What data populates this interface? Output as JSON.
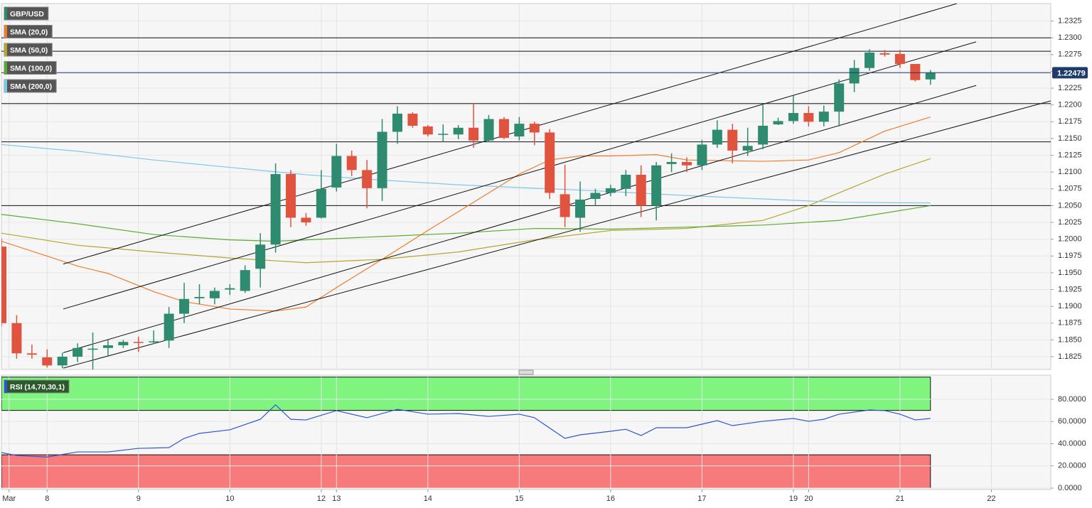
{
  "chart_data": [
    {
      "type": "candlestick",
      "series": [
        {
          "name": "GBP/USD",
          "up_color": "#2e8b6f",
          "down_color": "#e0533f",
          "open": [
            1.1989,
            1.1875,
            1.183,
            1.1824,
            1.1812,
            1.1825,
            1.1836,
            1.1838,
            1.1842,
            1.1847,
            1.1847,
            1.1849,
            1.1889,
            1.1912,
            1.1912,
            1.1925,
            1.1923,
            1.1956,
            1.1992,
            1.2097,
            1.2032,
            1.2032,
            1.2077,
            1.2124,
            1.2103,
            1.2076,
            1.216,
            1.2187,
            1.2168,
            1.2156,
            1.2156,
            1.2166,
            1.2147,
            1.2179,
            1.2153,
            1.2172,
            1.2159,
            1.2067,
            1.2032,
            1.206,
            1.2069,
            1.2075,
            1.2096,
            1.205,
            1.2112,
            1.2115,
            1.211,
            1.2141,
            1.2163,
            1.2132,
            1.2141,
            1.2171,
            1.2176,
            1.2188,
            1.2175,
            1.219,
            1.2232,
            1.2255,
            1.2277,
            1.2276,
            1.2261,
            1.2238
          ],
          "high": [
            1.2001,
            1.1887,
            1.1843,
            1.1836,
            1.1831,
            1.1845,
            1.1861,
            1.185,
            1.185,
            1.1855,
            1.1864,
            1.1899,
            1.1935,
            1.1933,
            1.1928,
            1.1933,
            1.1961,
            1.2009,
            1.2113,
            1.2103,
            1.2039,
            1.2103,
            1.2142,
            1.2132,
            1.2118,
            1.2179,
            1.2198,
            1.2189,
            1.217,
            1.2171,
            1.217,
            1.2203,
            1.2185,
            1.2182,
            1.2182,
            1.2175,
            1.2164,
            1.2111,
            1.2086,
            1.2075,
            1.2081,
            1.2103,
            1.211,
            1.2115,
            1.2128,
            1.2122,
            1.2148,
            1.2177,
            1.2172,
            1.2166,
            1.22,
            1.2181,
            1.2214,
            1.2198,
            1.2199,
            1.2238,
            1.2267,
            1.2283,
            1.2282,
            1.2282,
            1.2261,
            1.2252
          ],
          "low": [
            1.187,
            1.1822,
            1.1822,
            1.1809,
            1.1808,
            1.1817,
            1.1806,
            1.1827,
            1.1838,
            1.1832,
            1.1844,
            1.1838,
            1.1875,
            1.1903,
            1.1903,
            1.1917,
            1.192,
            1.1928,
            1.198,
            1.2018,
            1.202,
            1.2031,
            1.2071,
            1.2094,
            1.2046,
            1.2057,
            1.2142,
            1.2166,
            1.2153,
            1.2145,
            1.2149,
            1.2136,
            1.2145,
            1.2149,
            1.2147,
            1.214,
            1.206,
            1.2018,
            1.2011,
            1.205,
            1.2064,
            1.2064,
            1.2033,
            1.2028,
            1.21,
            1.21,
            1.2103,
            1.2136,
            1.2113,
            1.2124,
            1.2134,
            1.217,
            1.2172,
            1.2168,
            1.2168,
            1.2168,
            1.2219,
            1.2251,
            1.2272,
            1.2255,
            1.2235,
            1.223
          ],
          "close": [
            1.1875,
            1.183,
            1.1828,
            1.1812,
            1.1825,
            1.1838,
            1.1837,
            1.1842,
            1.1847,
            1.1846,
            1.1848,
            1.1889,
            1.1911,
            1.1914,
            1.1923,
            1.1927,
            1.1954,
            1.1992,
            1.2097,
            1.2032,
            1.2025,
            1.2075,
            1.2124,
            1.2103,
            1.2076,
            1.216,
            1.2187,
            1.2169,
            1.2156,
            1.2157,
            1.2166,
            1.2147,
            1.2179,
            1.2151,
            1.2172,
            1.2159,
            1.2069,
            1.2033,
            1.2059,
            1.2069,
            1.2076,
            1.2096,
            1.205,
            1.211,
            1.2115,
            1.211,
            1.2141,
            1.2163,
            1.2132,
            1.2139,
            1.2169,
            1.2176,
            1.2188,
            1.2175,
            1.219,
            1.2232,
            1.2255,
            1.2278,
            1.2275,
            1.2261,
            1.2237,
            1.2248
          ]
        }
      ],
      "overlays": [
        {
          "name": "SMA (20,0)",
          "color": "#f07c2a",
          "x": [
            0,
            5,
            7,
            10,
            12,
            15,
            18,
            20,
            22,
            25,
            28,
            31,
            34,
            36,
            38,
            40,
            43,
            45,
            50,
            53,
            55,
            58,
            61
          ],
          "values": [
            1.1997,
            1.196,
            1.1949,
            1.1922,
            1.1907,
            1.1896,
            1.1893,
            1.1899,
            1.1928,
            1.197,
            1.2013,
            1.2055,
            1.2097,
            1.2118,
            1.2124,
            1.2124,
            1.2126,
            1.2118,
            1.2116,
            1.2118,
            1.2129,
            1.2161,
            1.2182
          ]
        },
        {
          "name": "SMA (50,0)",
          "color": "#b5a531",
          "x": [
            0,
            5,
            10,
            15,
            20,
            25,
            30,
            35,
            40,
            45,
            50,
            53,
            55,
            58,
            61
          ],
          "values": [
            1.2009,
            1.1991,
            1.1981,
            1.1972,
            1.1965,
            1.197,
            1.1981,
            1.1999,
            1.2013,
            1.2016,
            1.2028,
            1.205,
            1.2069,
            1.2097,
            1.212
          ]
        },
        {
          "name": "SMA (100,0)",
          "color": "#5aab2f",
          "x": [
            0,
            5,
            10,
            15,
            18,
            20,
            25,
            30,
            35,
            40,
            45,
            50,
            55,
            61
          ],
          "values": [
            1.2037,
            1.2023,
            1.2007,
            1.1999,
            1.1997,
            1.1999,
            1.2004,
            1.2009,
            1.2016,
            1.2015,
            1.2018,
            1.2021,
            1.2028,
            1.205
          ]
        },
        {
          "name": "SMA (200,0)",
          "color": "#7ec8e8",
          "x": [
            0,
            5,
            10,
            15,
            20,
            25,
            30,
            35,
            40,
            45,
            50,
            55,
            61
          ],
          "values": [
            1.2141,
            1.2131,
            1.2118,
            1.2107,
            1.2096,
            1.2088,
            1.2081,
            1.2076,
            1.2071,
            1.2065,
            1.206,
            1.2055,
            1.2054
          ]
        }
      ],
      "trendlines": [
        {
          "x": [
            4.06,
            62.74
          ],
          "values": [
            1.1963,
            1.2351
          ]
        },
        {
          "x": [
            4.06,
            64.0
          ],
          "values": [
            1.1896,
            1.2294
          ]
        },
        {
          "x": [
            4.06,
            64.0
          ],
          "values": [
            1.1831,
            1.2229
          ]
        },
        {
          "x": [
            4.06,
            68.9
          ],
          "values": [
            1.1808,
            1.2206
          ]
        }
      ],
      "hlines": [
        1.23,
        1.228,
        1.2202,
        1.2145,
        1.205
      ],
      "last_price": 1.22479,
      "last_price_color": "#1f3b6b",
      "xlim": [
        0,
        68.9
      ],
      "ylim": [
        1.1806,
        1.2351
      ],
      "yticks": [
        1.2325,
        {
          "value": 1.23,
          "label": "1.2300"
        },
        1.2275,
        {
          "value": 1.225,
          "label": "1.2250"
        },
        1.2225,
        {
          "value": 1.22,
          "label": "1.2200"
        },
        1.2175,
        {
          "value": 1.215,
          "label": "1.2150"
        },
        1.2125,
        {
          "value": 1.21,
          "label": "1.2100"
        },
        1.2075,
        {
          "value": 1.205,
          "label": "1.2050"
        },
        1.2025,
        {
          "value": 1.2,
          "label": "1.2000"
        },
        1.1975,
        {
          "value": 1.195,
          "label": "1.1950"
        },
        1.1925,
        {
          "value": 1.19,
          "label": "1.1900"
        },
        1.1875,
        {
          "value": 1.185,
          "label": "1.1850"
        },
        1.1825
      ],
      "grid": true
    },
    {
      "type": "line",
      "series": [
        {
          "name": "RSI (14,70,30,1)",
          "color": "#2f55d4",
          "x": [
            0,
            1,
            3,
            5,
            7,
            9,
            11,
            12,
            13,
            15,
            17,
            18,
            19,
            20,
            22,
            24,
            26,
            28,
            30,
            32,
            34,
            35,
            37,
            38,
            40,
            41,
            42,
            43,
            45,
            46,
            47,
            48,
            50,
            52,
            53,
            54,
            55,
            57,
            58,
            59,
            60,
            61
          ],
          "values": [
            32,
            29.4,
            28,
            32.6,
            32.6,
            35.8,
            36.5,
            44.8,
            49.3,
            52.5,
            62,
            75,
            62,
            61.4,
            69.8,
            63.4,
            71,
            66.6,
            67.2,
            64.6,
            66.6,
            63.4,
            44.8,
            48,
            51.2,
            53,
            47.4,
            54.4,
            54.4,
            57.6,
            60.8,
            56.3,
            60.2,
            62.7,
            60.2,
            62,
            66.6,
            70.4,
            69.8,
            66.6,
            61.4,
            62.7
          ]
        }
      ],
      "bands": [
        {
          "from": 70,
          "to": 100,
          "color": "#7ff57f"
        },
        {
          "from": 0,
          "to": 30,
          "color": "#f77b7b"
        }
      ],
      "xlim": [
        0,
        68.9
      ],
      "xticks": [
        {
          "value": 0.5,
          "label": "Mar"
        },
        {
          "value": 3,
          "label": "8"
        },
        {
          "value": 9,
          "label": "9"
        },
        {
          "value": 15,
          "label": "10"
        },
        {
          "value": 21,
          "label": "12"
        },
        {
          "value": 22,
          "label": "13"
        },
        {
          "value": 28,
          "label": "14"
        },
        {
          "value": 34,
          "label": "15"
        },
        {
          "value": 40,
          "label": "16"
        },
        {
          "value": 46,
          "label": "17"
        },
        {
          "value": 52,
          "label": "19"
        },
        {
          "value": 53,
          "label": "20"
        },
        {
          "value": 59,
          "label": "21"
        },
        {
          "value": 65,
          "label": "22"
        }
      ],
      "ylim": [
        0,
        100
      ],
      "yticks": [
        {
          "value": 0,
          "label": "0.0000"
        },
        {
          "value": 20,
          "label": "20.0000"
        },
        {
          "value": 40,
          "label": "40.0000"
        },
        {
          "value": 60,
          "label": "60.0000"
        },
        {
          "value": 80,
          "label": "80.0000"
        }
      ],
      "grid": true
    }
  ]
}
